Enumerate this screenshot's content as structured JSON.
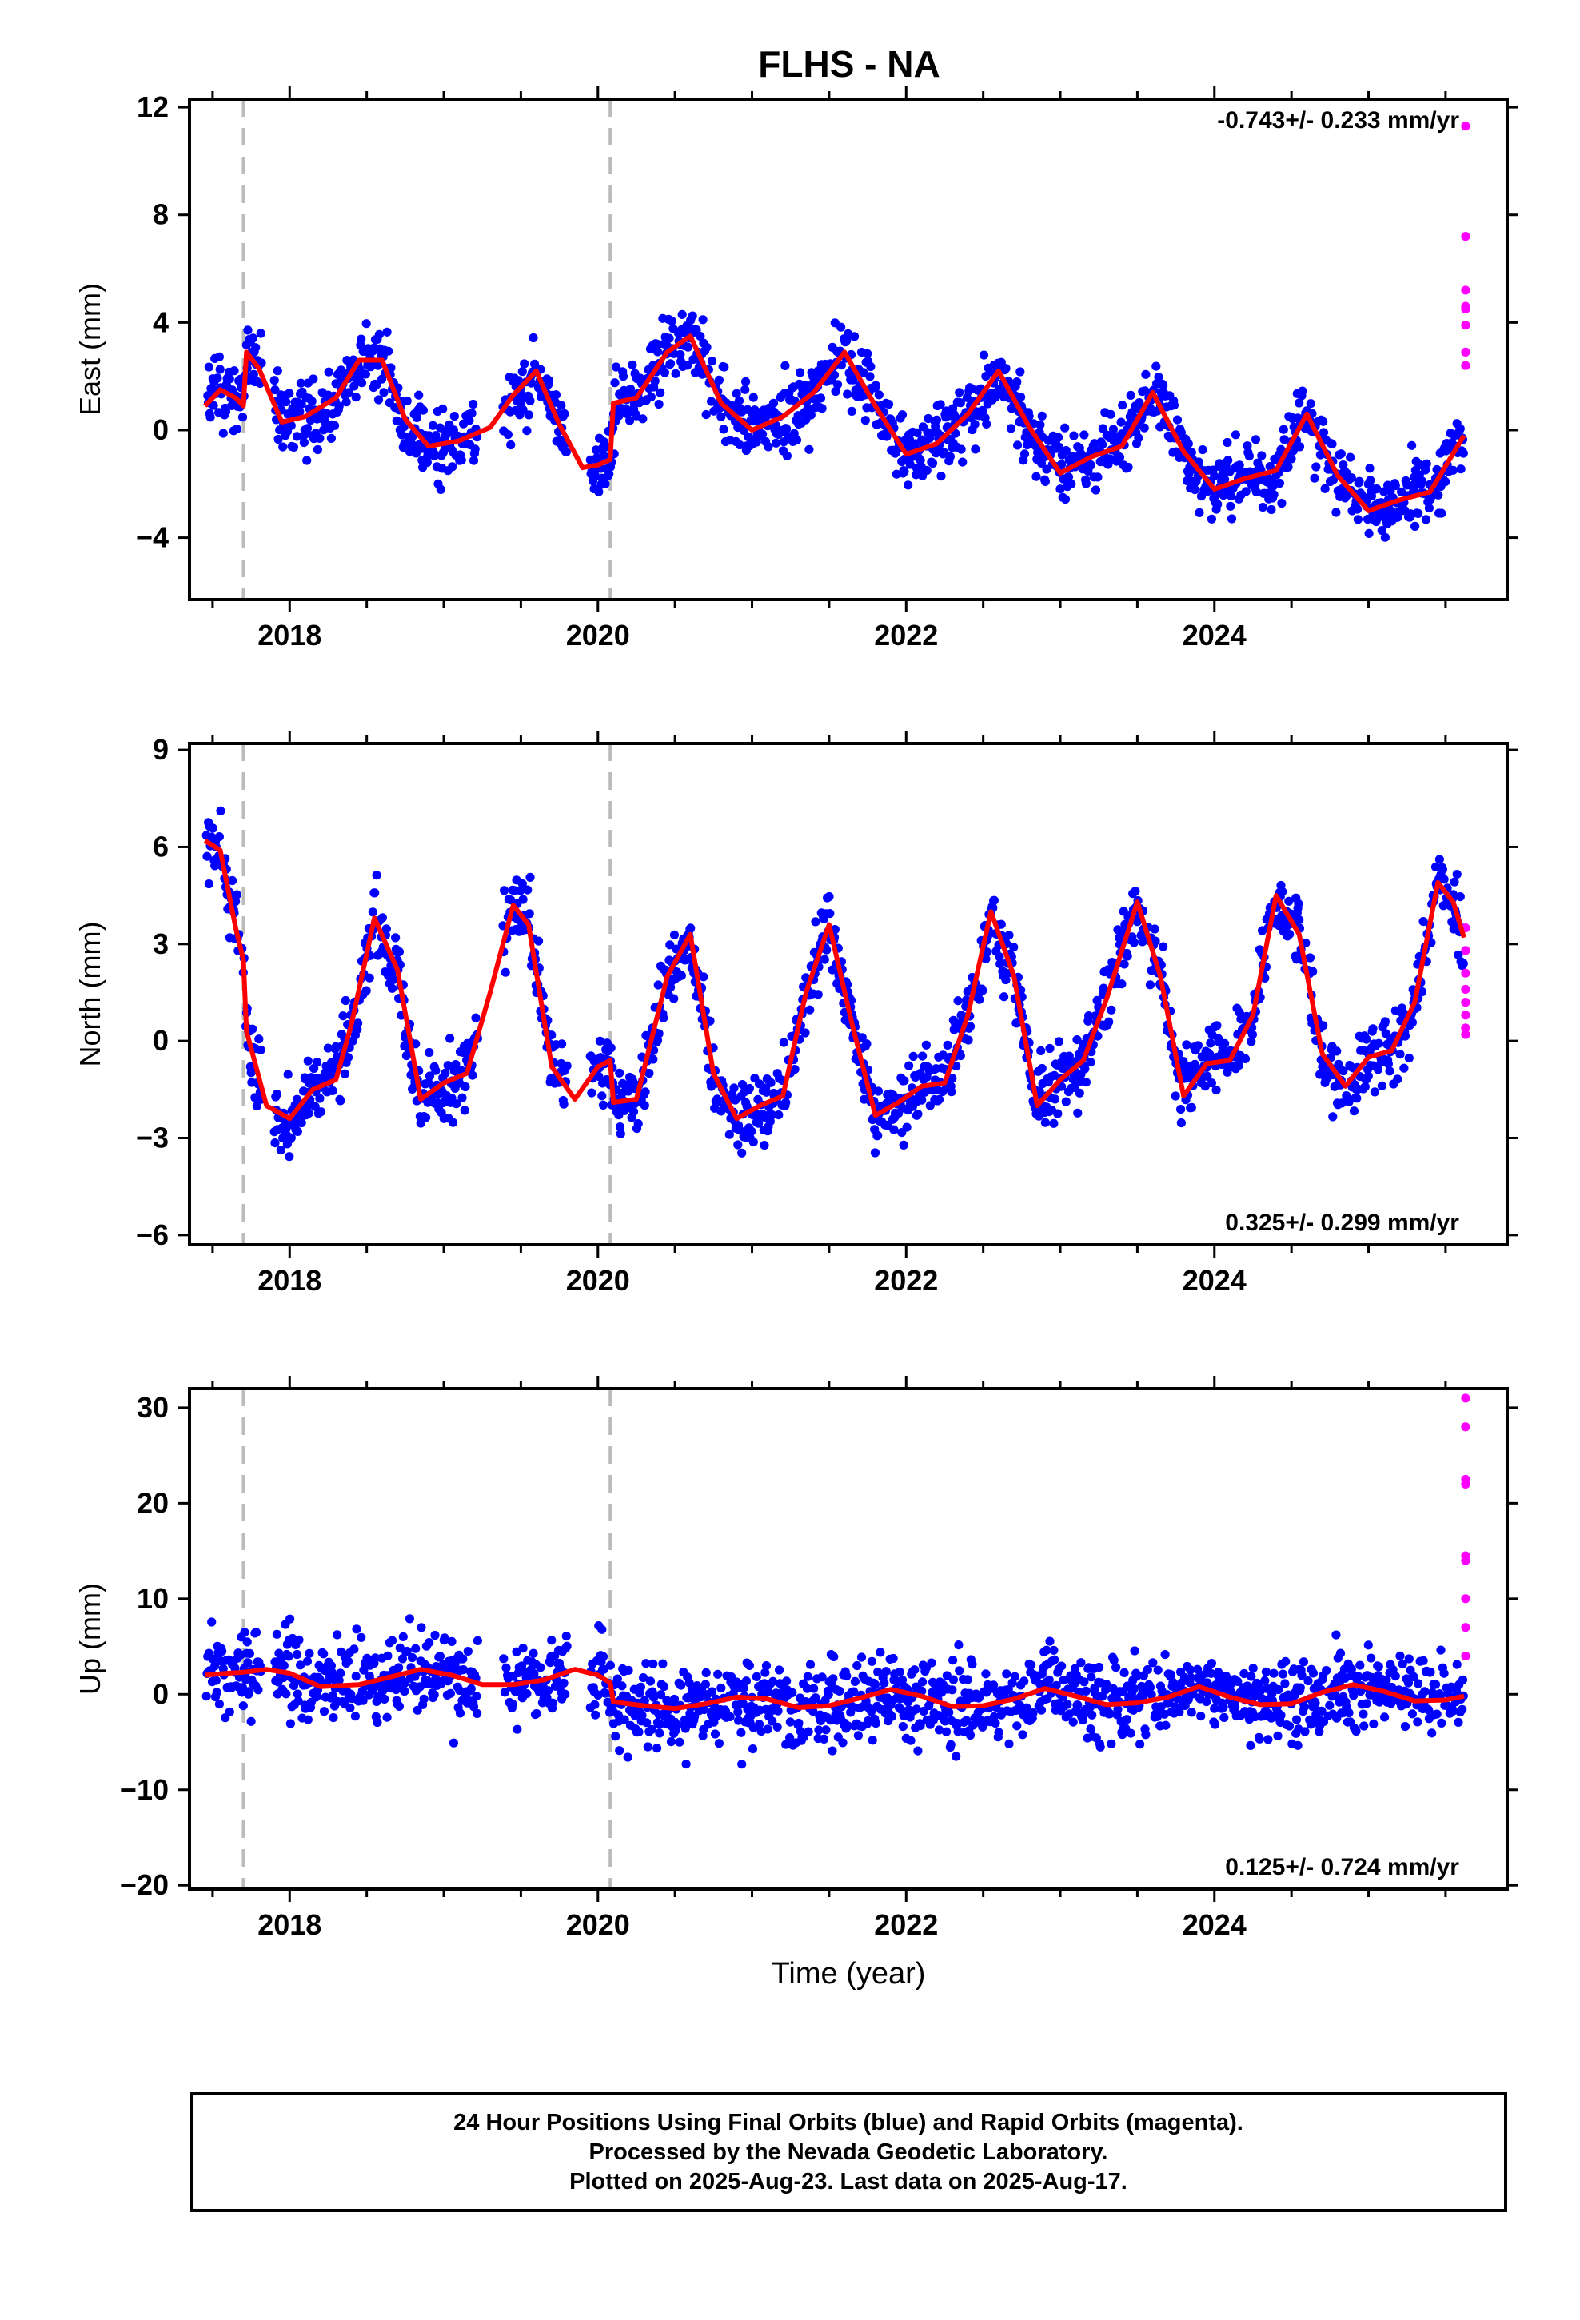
{
  "title": "FLHS - NA",
  "footer": {
    "line1": "24 Hour Positions Using Final Orbits (blue) and Rapid Orbits (magenta).",
    "line2": "Processed by the Nevada Geodetic Laboratory.",
    "line3": "Plotted on 2025-Aug-23. Last data on 2025-Aug-17."
  },
  "colors": {
    "final": "#0000ff",
    "rapid": "#ff00ff",
    "model": "#ff0000",
    "breaks": "#bbbbbb"
  },
  "chart_data": [
    {
      "type": "scatter",
      "component": "east",
      "ylabel": "East (mm)",
      "xlabel": "",
      "rate_text": "-0.743+/- 0.233 mm/yr",
      "xlim": [
        2017.35,
        2025.9
      ],
      "ylim": [
        -6.3,
        12.3
      ],
      "yticks": [
        -4,
        0,
        4,
        8,
        12
      ],
      "xticks": [
        2018,
        2020,
        2022,
        2024
      ],
      "step_breaks": [
        2017.7,
        2020.08
      ],
      "model_curve": {
        "color": "#ff0000",
        "x": [
          2017.45,
          2017.55,
          2017.65,
          2017.7,
          2017.72,
          2017.8,
          2017.95,
          2018.1,
          2018.3,
          2018.45,
          2018.6,
          2018.75,
          2018.9,
          2019.1,
          2019.3,
          2019.45,
          2019.6,
          2019.75,
          2019.9,
          2020.0,
          2020.08,
          2020.1,
          2020.25,
          2020.45,
          2020.6,
          2020.8,
          2021.0,
          2021.2,
          2021.4,
          2021.6,
          2021.8,
          2022.0,
          2022.2,
          2022.4,
          2022.6,
          2022.8,
          2023.0,
          2023.2,
          2023.4,
          2023.6,
          2023.8,
          2024.0,
          2024.2,
          2024.4,
          2024.6,
          2024.8,
          2025.0,
          2025.2,
          2025.4,
          2025.62
        ],
        "y": [
          0.9,
          1.5,
          1.2,
          0.9,
          2.9,
          2.3,
          0.3,
          0.5,
          1.2,
          2.6,
          2.6,
          0.4,
          -0.6,
          -0.4,
          0.1,
          1.3,
          2.2,
          0.2,
          -1.4,
          -1.3,
          -1.1,
          1.0,
          1.2,
          2.9,
          3.5,
          1.0,
          0.0,
          0.5,
          1.4,
          2.9,
          0.9,
          -0.9,
          -0.5,
          0.6,
          2.2,
          0.1,
          -1.6,
          -1.0,
          -0.6,
          1.4,
          -0.8,
          -2.2,
          -1.8,
          -1.5,
          0.6,
          -1.7,
          -3.0,
          -2.6,
          -2.3,
          -0.2
        ]
      },
      "rapid_points": {
        "x": [
          2025.63,
          2025.63,
          2025.63,
          2025.63,
          2025.63,
          2025.63,
          2025.63,
          2025.63
        ],
        "y": [
          11.3,
          7.2,
          5.2,
          4.5,
          4.6,
          3.9,
          2.9,
          2.4
        ]
      }
    },
    {
      "type": "scatter",
      "component": "north",
      "ylabel": "North (mm)",
      "xlabel": "",
      "rate_text": "0.325+/- 0.299 mm/yr",
      "xlim": [
        2017.35,
        2025.9
      ],
      "ylim": [
        -6.3,
        9.2
      ],
      "yticks": [
        -6,
        -3,
        0,
        3,
        6,
        9
      ],
      "xticks": [
        2018,
        2020,
        2022,
        2024
      ],
      "step_breaks": [
        2017.7,
        2020.08
      ],
      "model_curve": {
        "color": "#ff0000",
        "x": [
          2017.45,
          2017.55,
          2017.65,
          2017.7,
          2017.72,
          2017.85,
          2018.0,
          2018.15,
          2018.3,
          2018.4,
          2018.55,
          2018.7,
          2018.85,
          2019.0,
          2019.15,
          2019.3,
          2019.45,
          2019.55,
          2019.7,
          2019.85,
          2020.0,
          2020.08,
          2020.1,
          2020.25,
          2020.45,
          2020.6,
          2020.75,
          2020.9,
          2021.05,
          2021.2,
          2021.35,
          2021.5,
          2021.65,
          2021.8,
          2021.95,
          2022.1,
          2022.25,
          2022.4,
          2022.55,
          2022.7,
          2022.85,
          2023.0,
          2023.15,
          2023.3,
          2023.5,
          2023.65,
          2023.8,
          2023.95,
          2024.1,
          2024.25,
          2024.4,
          2024.55,
          2024.7,
          2024.85,
          2025.0,
          2025.15,
          2025.3,
          2025.45,
          2025.55,
          2025.62
        ],
        "y": [
          6.2,
          5.9,
          3.5,
          2.5,
          0.3,
          -2.0,
          -2.4,
          -1.5,
          -1.2,
          0.5,
          3.8,
          2.2,
          -1.8,
          -1.3,
          -1.0,
          1.5,
          4.2,
          3.6,
          -0.8,
          -1.8,
          -0.8,
          -0.6,
          -1.9,
          -1.8,
          2.0,
          3.3,
          -1.0,
          -2.4,
          -2.0,
          -1.7,
          1.5,
          3.6,
          0.5,
          -2.3,
          -1.9,
          -1.4,
          -1.3,
          0.8,
          4.0,
          2.0,
          -2.0,
          -1.2,
          -0.6,
          1.3,
          4.3,
          2.0,
          -1.7,
          -0.7,
          -0.6,
          0.8,
          4.5,
          3.3,
          -0.4,
          -1.4,
          -0.5,
          -0.3,
          1.2,
          4.9,
          4.3,
          3.2
        ]
      },
      "rapid_points": {
        "x": [
          2025.63,
          2025.63,
          2025.63,
          2025.63,
          2025.63,
          2025.63,
          2025.63,
          2025.63
        ],
        "y": [
          3.5,
          2.8,
          2.1,
          1.6,
          1.2,
          0.8,
          0.4,
          0.2
        ]
      }
    },
    {
      "type": "scatter",
      "component": "up",
      "ylabel": "Up (mm)",
      "xlabel": "Time (year)",
      "rate_text": "0.125+/- 0.724 mm/yr",
      "xlim": [
        2017.35,
        2025.9
      ],
      "ylim": [
        -20.4,
        32.0
      ],
      "yticks": [
        -20,
        -10,
        0,
        10,
        20,
        30
      ],
      "xticks": [
        2018,
        2020,
        2022,
        2024
      ],
      "step_breaks": [
        2017.7,
        2020.08
      ],
      "model_curve": {
        "color": "#ff0000",
        "x": [
          2017.45,
          2017.6,
          2017.7,
          2017.85,
          2018.0,
          2018.2,
          2018.45,
          2018.65,
          2018.85,
          2019.05,
          2019.25,
          2019.45,
          2019.65,
          2019.85,
          2020.0,
          2020.08,
          2020.1,
          2020.3,
          2020.5,
          2020.7,
          2020.9,
          2021.1,
          2021.3,
          2021.5,
          2021.7,
          2021.9,
          2022.1,
          2022.3,
          2022.5,
          2022.7,
          2022.9,
          2023.1,
          2023.3,
          2023.5,
          2023.7,
          2023.9,
          2024.1,
          2024.3,
          2024.5,
          2024.7,
          2024.9,
          2025.1,
          2025.3,
          2025.5,
          2025.62
        ],
        "y": [
          2.0,
          2.2,
          2.3,
          2.6,
          2.2,
          0.8,
          1.0,
          1.8,
          2.6,
          2.0,
          1.0,
          1.0,
          1.5,
          2.6,
          2.0,
          1.2,
          -0.8,
          -1.2,
          -1.5,
          -1.0,
          -0.3,
          -0.5,
          -1.4,
          -1.2,
          -0.4,
          0.5,
          -0.2,
          -1.3,
          -1.2,
          -0.5,
          0.6,
          -0.2,
          -1.1,
          -0.9,
          -0.3,
          0.8,
          -0.3,
          -1.1,
          -1.0,
          0.2,
          1.0,
          0.3,
          -0.7,
          -0.6,
          -0.2
        ]
      },
      "rapid_points": {
        "x": [
          2025.63,
          2025.63,
          2025.63,
          2025.63,
          2025.63,
          2025.63,
          2025.63,
          2025.63,
          2025.63
        ],
        "y": [
          31,
          28,
          22.5,
          22,
          14.5,
          14,
          10,
          7,
          4
        ]
      }
    }
  ]
}
